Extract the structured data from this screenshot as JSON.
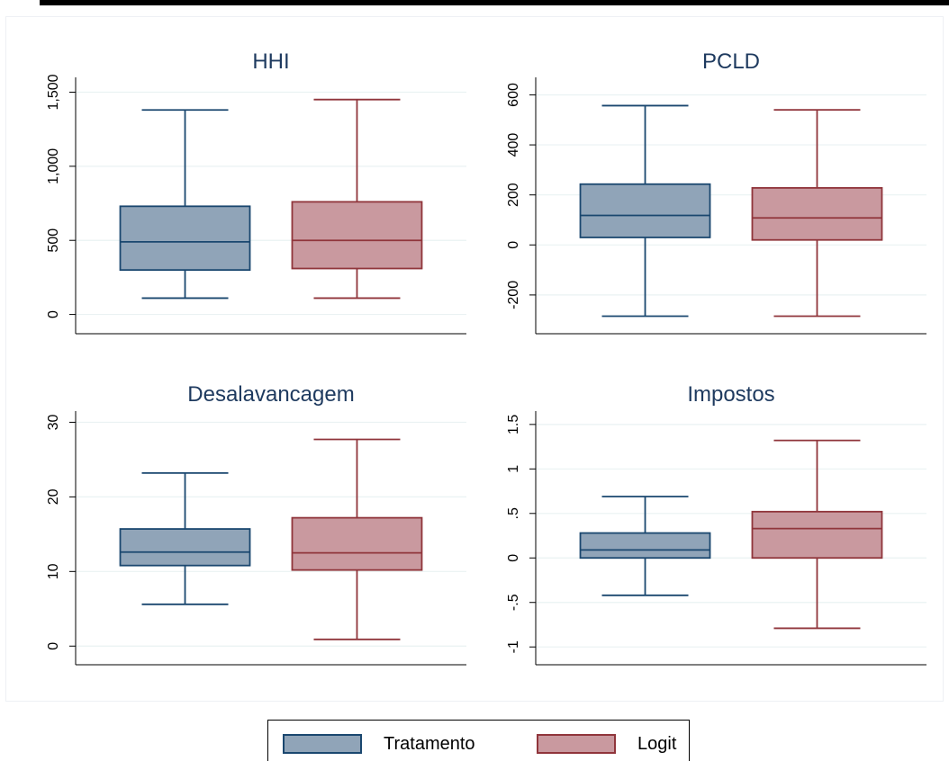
{
  "colors": {
    "series1_fill": "#90a4b8",
    "series1_line": "#1a476f",
    "series2_fill": "#c9999f",
    "series2_line": "#90353b",
    "grid": "#eaf2f3",
    "title": "#1e3a5f"
  },
  "legend": {
    "position": "bottom",
    "items": [
      {
        "label": "Tratamento"
      },
      {
        "label": "Logit"
      }
    ]
  },
  "chart_data": [
    {
      "type": "box",
      "title": "HHI",
      "yticks": [
        "0",
        "500",
        "1,000",
        "1,500"
      ],
      "ytick_values": [
        0,
        500,
        1000,
        1500
      ],
      "ylim": [
        -130,
        1600
      ],
      "grid": true,
      "series": [
        {
          "name": "Tratamento",
          "min": 110,
          "q1": 300,
          "median": 490,
          "q3": 730,
          "max": 1380
        },
        {
          "name": "Logit",
          "min": 110,
          "q1": 310,
          "median": 500,
          "q3": 760,
          "max": 1450
        }
      ]
    },
    {
      "type": "box",
      "title": "PCLD",
      "yticks": [
        "-200",
        "0",
        "200",
        "400",
        "600"
      ],
      "ytick_values": [
        -200,
        0,
        200,
        400,
        600
      ],
      "ylim": [
        -355,
        670
      ],
      "grid": true,
      "series": [
        {
          "name": "Tratamento",
          "min": -285,
          "q1": 30,
          "median": 118,
          "q3": 243,
          "max": 557
        },
        {
          "name": "Logit",
          "min": -285,
          "q1": 20,
          "median": 108,
          "q3": 228,
          "max": 540
        }
      ]
    },
    {
      "type": "box",
      "title": "Desalavancagem",
      "yticks": [
        "0",
        "10",
        "20",
        "30"
      ],
      "ytick_values": [
        0,
        10,
        20,
        30
      ],
      "ylim": [
        -2.5,
        31.5
      ],
      "grid": true,
      "series": [
        {
          "name": "Tratamento",
          "min": 5.6,
          "q1": 10.8,
          "median": 12.6,
          "q3": 15.7,
          "max": 23.2
        },
        {
          "name": "Logit",
          "min": 0.9,
          "q1": 10.2,
          "median": 12.5,
          "q3": 17.2,
          "max": 27.7
        }
      ]
    },
    {
      "type": "box",
      "title": "Impostos",
      "yticks": [
        "-1",
        "-.5",
        "0",
        ".5",
        "1",
        "1.5"
      ],
      "ytick_values": [
        -1,
        -0.5,
        0,
        0.5,
        1,
        1.5
      ],
      "ylim": [
        -1.2,
        1.65
      ],
      "grid": true,
      "series": [
        {
          "name": "Tratamento",
          "min": -0.42,
          "q1": 0,
          "median": 0.09,
          "q3": 0.28,
          "max": 0.69
        },
        {
          "name": "Logit",
          "min": -0.79,
          "q1": 0,
          "median": 0.33,
          "q3": 0.52,
          "max": 1.32
        }
      ]
    }
  ]
}
